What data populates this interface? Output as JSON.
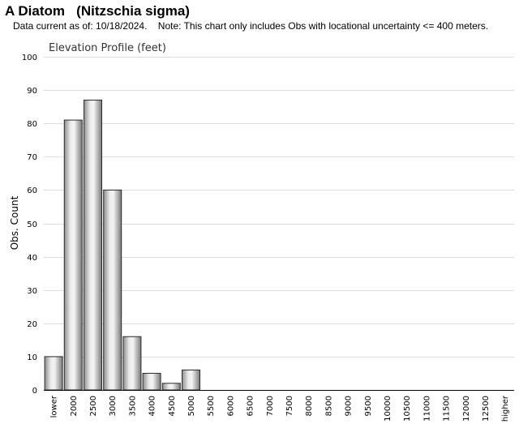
{
  "header": {
    "title": "A Diatom   (Nitzschia sigma)",
    "note": "Data current as of: 10/18/2024.    Note: This chart only includes Obs with locational uncertainty <= 400 meters."
  },
  "chart_data": {
    "type": "bar",
    "title": "Elevation Profile (feet)",
    "xlabel": "",
    "ylabel": "Obs. Count",
    "ylim": [
      0,
      100
    ],
    "yticks": [
      0,
      10,
      20,
      30,
      40,
      50,
      60,
      70,
      80,
      90,
      100
    ],
    "grid": true,
    "categories": [
      "lower",
      "2000",
      "2500",
      "3000",
      "3500",
      "4000",
      "4500",
      "5000",
      "5500",
      "6000",
      "6500",
      "7000",
      "7500",
      "8000",
      "8500",
      "9000",
      "9500",
      "10000",
      "10500",
      "11000",
      "11500",
      "12000",
      "12500",
      "higher"
    ],
    "values": [
      10,
      81,
      87,
      60,
      16,
      5,
      2,
      6,
      0,
      0,
      0,
      0,
      0,
      0,
      0,
      0,
      0,
      0,
      0,
      0,
      0,
      0,
      0,
      0
    ]
  }
}
